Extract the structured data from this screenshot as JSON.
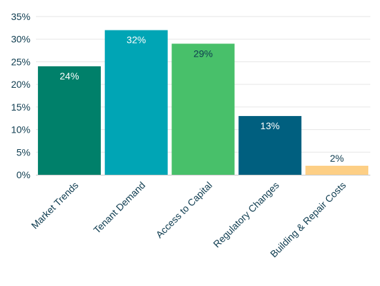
{
  "chart_data": {
    "type": "bar",
    "categories": [
      "Market Trends",
      "Tenant Demand",
      "Access to Capital",
      "Regulatory Changes",
      "Building & Repair Costs"
    ],
    "values": [
      24,
      32,
      29,
      13,
      2
    ],
    "data_labels": [
      "24%",
      "32%",
      "29%",
      "13%",
      "2%"
    ],
    "title": "",
    "xlabel": "",
    "ylabel": "",
    "ylim": [
      0,
      35
    ],
    "yticks": [
      0,
      5,
      10,
      15,
      20,
      25,
      30,
      35
    ],
    "ytick_labels": [
      "0%",
      "5%",
      "10%",
      "15%",
      "20%",
      "25%",
      "30%",
      "35%"
    ],
    "grid": true,
    "legend": "none",
    "bar_colors": [
      "#00806a",
      "#00a5b5",
      "#48c06a",
      "#005f7f",
      "#fdcf85"
    ],
    "label_colors": [
      "#ffffff",
      "#ffffff",
      "#0d3b4f",
      "#ffffff",
      "#0d3b4f"
    ],
    "label_placement": [
      "inside",
      "inside",
      "inside",
      "inside",
      "above"
    ]
  }
}
